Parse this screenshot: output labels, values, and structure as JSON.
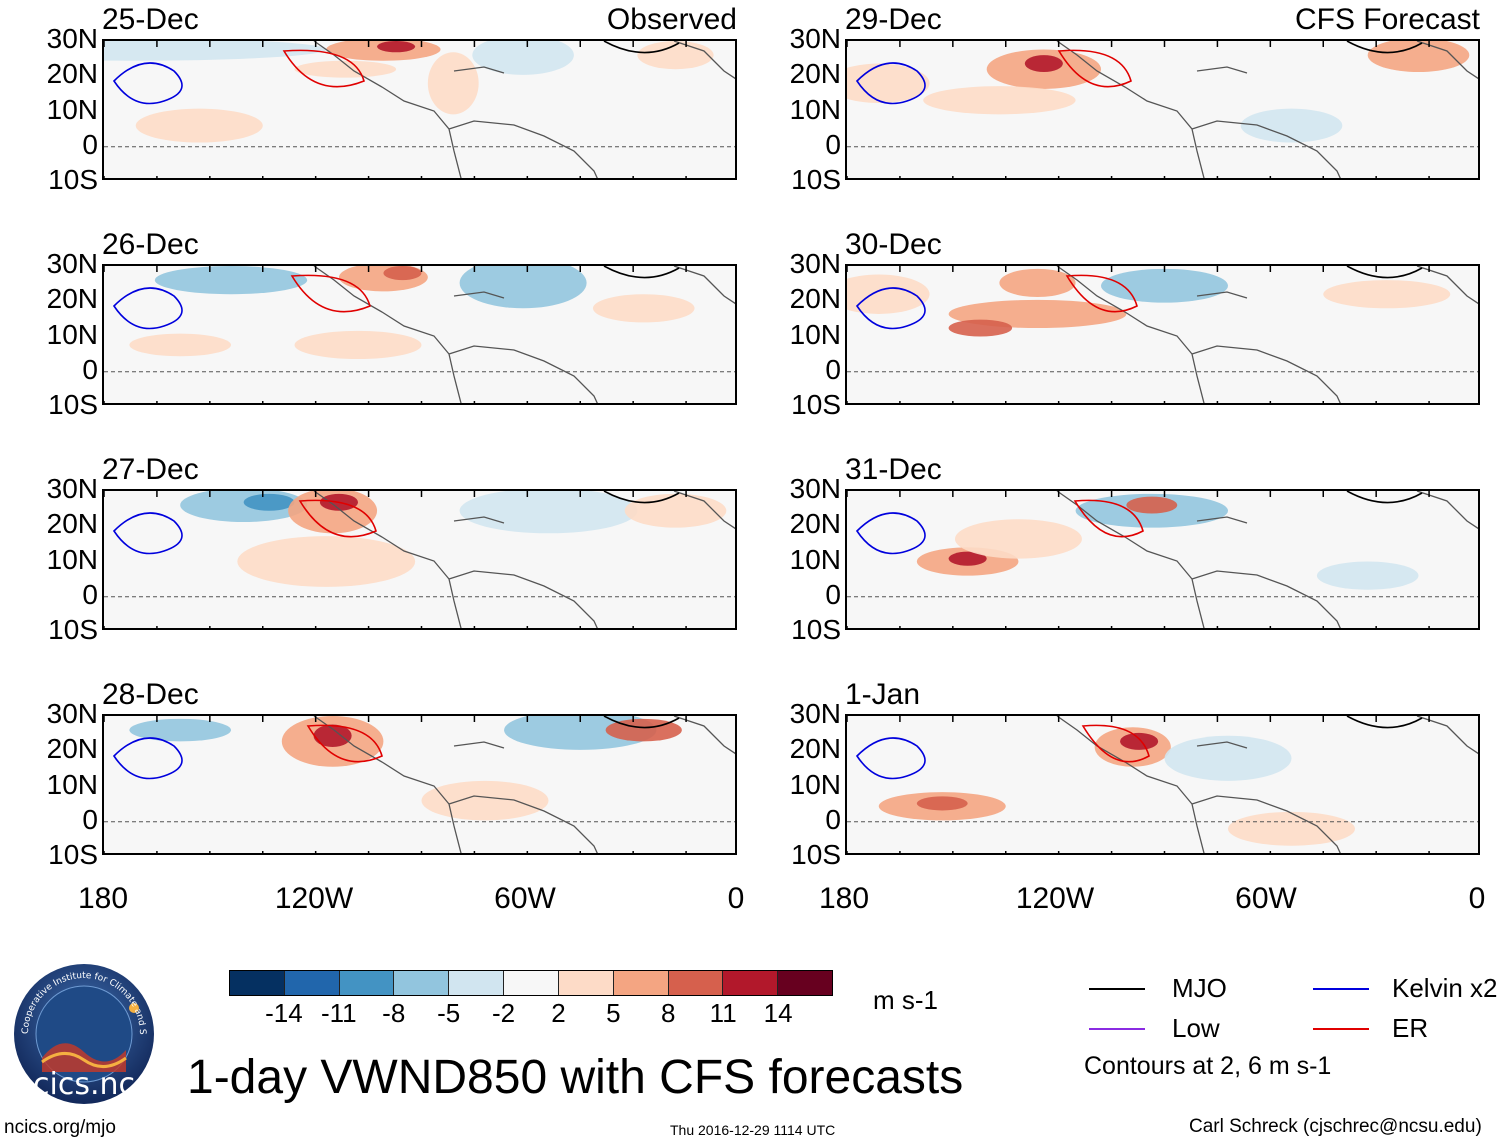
{
  "panels_left": [
    {
      "date": "25-Dec",
      "header": "Observed"
    },
    {
      "date": "26-Dec",
      "header": ""
    },
    {
      "date": "27-Dec",
      "header": ""
    },
    {
      "date": "28-Dec",
      "header": ""
    }
  ],
  "panels_right": [
    {
      "date": "29-Dec",
      "header": "CFS Forecast"
    },
    {
      "date": "30-Dec",
      "header": ""
    },
    {
      "date": "31-Dec",
      "header": ""
    },
    {
      "date": "1-Jan",
      "header": ""
    }
  ],
  "latitude_labels": [
    "30N",
    "20N",
    "10N",
    "0",
    "10S"
  ],
  "longitude_labels": [
    "180",
    "120W",
    "60W",
    "0"
  ],
  "colorbar": {
    "labels": [
      "-14",
      "-11",
      "-8",
      "-5",
      "-2",
      "2",
      "5",
      "8",
      "11",
      "14"
    ],
    "colors": [
      "#053061",
      "#2166ac",
      "#4393c3",
      "#92c5de",
      "#d1e5f0",
      "#f7f7f7",
      "#fddbc7",
      "#f4a582",
      "#d6604d",
      "#b2182b",
      "#67001f"
    ],
    "units": "m s-1"
  },
  "legend": {
    "items": [
      {
        "label": "MJO",
        "color": "#000000"
      },
      {
        "label": "Kelvin x2",
        "color": "#0000dd"
      },
      {
        "label": "Low",
        "color": "#8a2be2"
      },
      {
        "label": "ER",
        "color": "#e00000"
      }
    ],
    "note": "Contours at 2, 6 m s-1"
  },
  "title": "1-day VWND850 with CFS forecasts",
  "footer": {
    "site": "ncics.org/mjo",
    "timestamp": "Thu 2016-12-29 1114 UTC",
    "author": "Carl Schreck (cjschrec@ncsu.edu)"
  },
  "logo": {
    "text": "cics.nc",
    "ring_text": "Cooperative Institute for Climate and Satellites"
  }
}
